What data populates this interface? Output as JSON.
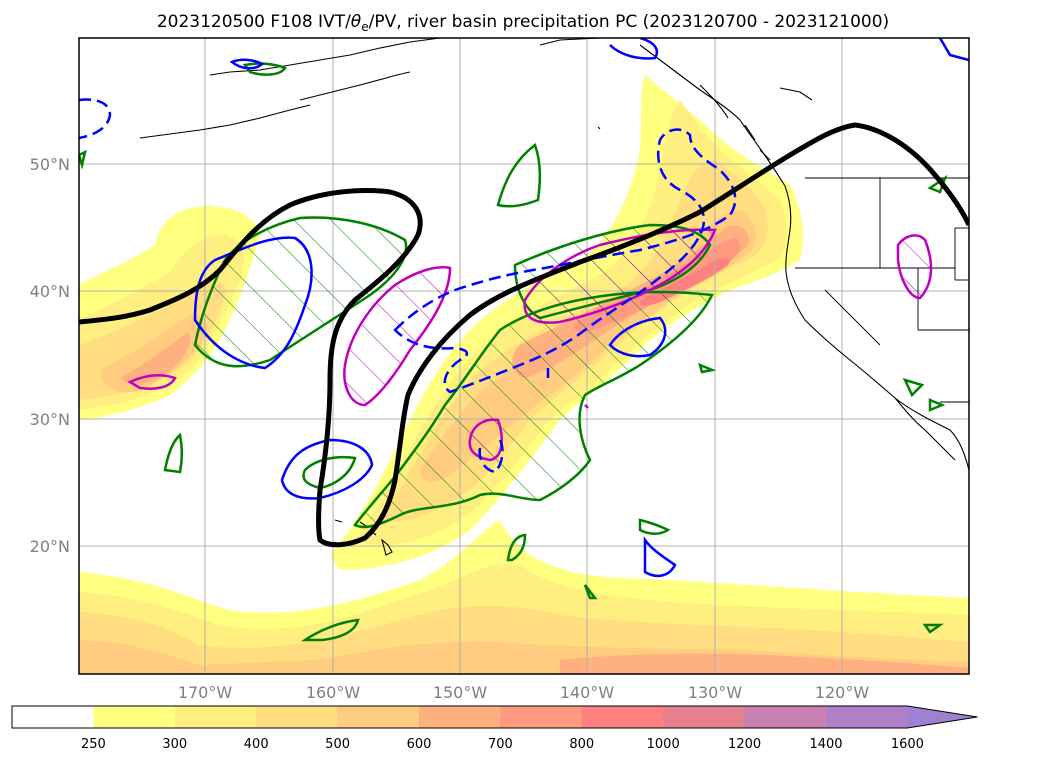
{
  "title": {
    "prefix": "2023120500 F108 IVT/",
    "theta": "θ",
    "subscript": "e",
    "suffix": "/PV, river basin precipitation PC (2023120700 - 2023121000)"
  },
  "map": {
    "lon_labels": [
      "170°W",
      "160°W",
      "150°W",
      "140°W",
      "130°W",
      "120°W"
    ],
    "lat_labels": [
      "50°N",
      "40°N",
      "30°N",
      "20°N"
    ]
  },
  "colorbar": {
    "levels": [
      "250",
      "300",
      "400",
      "500",
      "600",
      "700",
      "800",
      "1000",
      "1200",
      "1400",
      "1600"
    ],
    "colors": [
      "#ffffff",
      "#ffff80",
      "#ffee80",
      "#ffdd80",
      "#ffcc80",
      "#ffb080",
      "#ff9980",
      "#ff8080",
      "#e6808f",
      "#c880b0",
      "#b080c8",
      "#a080d0"
    ],
    "extend": "max"
  },
  "colors": {
    "ivt_contour_black": "#000000",
    "green_contour": "#008000",
    "blue_contour": "#0000ff",
    "magenta_contour": "#c000c0"
  }
}
